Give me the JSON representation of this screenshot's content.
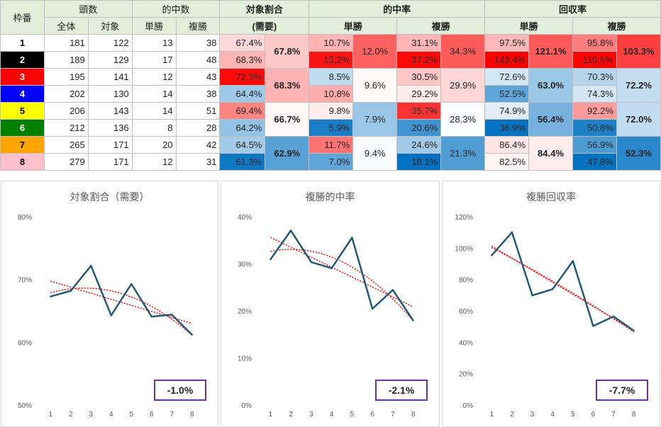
{
  "table": {
    "header": {
      "waku": "枠番",
      "tosu": "頭数",
      "zentai": "全体",
      "taisho": "対象",
      "tekichu_su": "的中数",
      "tansho": "単勝",
      "fukusho": "複勝",
      "taisho_wariai": "対象割合",
      "juyo": "(需要)",
      "tekichuritsu": "的中率",
      "kaishuritsu": "回収率"
    },
    "rows": [
      {
        "waku": "1",
        "zentai": "181",
        "taisho": "122",
        "tan_hit": "13",
        "fuku_hit": "38",
        "ratio": "67.4%",
        "tan_rate": "10.7%",
        "fuku_rate": "31.1%",
        "tan_ret": "97.5%",
        "fuku_ret": "95.8%"
      },
      {
        "waku": "2",
        "zentai": "189",
        "taisho": "129",
        "tan_hit": "17",
        "fuku_hit": "48",
        "ratio": "68.3%",
        "tan_rate": "13.2%",
        "fuku_rate": "37.2%",
        "tan_ret": "143.4%",
        "fuku_ret": "110.5%"
      },
      {
        "waku": "3",
        "zentai": "195",
        "taisho": "141",
        "tan_hit": "12",
        "fuku_hit": "43",
        "ratio": "72.3%",
        "tan_rate": "8.5%",
        "fuku_rate": "30.5%",
        "tan_ret": "72.6%",
        "fuku_ret": "70.3%"
      },
      {
        "waku": "4",
        "zentai": "202",
        "taisho": "130",
        "tan_hit": "14",
        "fuku_hit": "38",
        "ratio": "64.4%",
        "tan_rate": "10.8%",
        "fuku_rate": "29.2%",
        "tan_ret": "52.5%",
        "fuku_ret": "74.3%"
      },
      {
        "waku": "5",
        "zentai": "206",
        "taisho": "143",
        "tan_hit": "14",
        "fuku_hit": "51",
        "ratio": "69.4%",
        "tan_rate": "9.8%",
        "fuku_rate": "35.7%",
        "tan_ret": "74.9%",
        "fuku_ret": "92.2%"
      },
      {
        "waku": "6",
        "zentai": "212",
        "taisho": "136",
        "tan_hit": "8",
        "fuku_hit": "28",
        "ratio": "64.2%",
        "tan_rate": "5.9%",
        "fuku_rate": "20.6%",
        "tan_ret": "36.9%",
        "fuku_ret": "50.8%"
      },
      {
        "waku": "7",
        "zentai": "265",
        "taisho": "171",
        "tan_hit": "20",
        "fuku_hit": "42",
        "ratio": "64.5%",
        "tan_rate": "11.7%",
        "fuku_rate": "24.6%",
        "tan_ret": "86.4%",
        "fuku_ret": "56.9%"
      },
      {
        "waku": "8",
        "zentai": "279",
        "taisho": "171",
        "tan_hit": "12",
        "fuku_hit": "31",
        "ratio": "61.3%",
        "tan_rate": "7.0%",
        "fuku_rate": "18.1%",
        "tan_ret": "82.5%",
        "fuku_ret": "47.8%"
      }
    ],
    "pairs": [
      {
        "ratio": "67.8%",
        "tan_rate": "12.0%",
        "fuku_rate": "34.3%",
        "tan_ret": "121.1%",
        "fuku_ret": "103.3%"
      },
      {
        "ratio": "68.3%",
        "tan_rate": "9.6%",
        "fuku_rate": "29.9%",
        "tan_ret": "63.0%",
        "fuku_ret": "72.2%"
      },
      {
        "ratio": "66.7%",
        "tan_rate": "7.9%",
        "fuku_rate": "28.3%",
        "tan_ret": "56.4%",
        "fuku_ret": "72.0%"
      },
      {
        "ratio": "62.9%",
        "tan_rate": "9.4%",
        "fuku_rate": "21.3%",
        "tan_ret": "84.4%",
        "fuku_ret": "52.3%"
      }
    ],
    "waku_colors": [
      "#ffffff",
      "#000000",
      "#ff0000",
      "#0000ff",
      "#ffff00",
      "#008000",
      "#ffa500",
      "#ffc0cb"
    ],
    "waku_text_colors": [
      "#000000",
      "#ffffff",
      "#ffffff",
      "#ffffff",
      "#000000",
      "#ffffff",
      "#000000",
      "#000000"
    ]
  },
  "chart_data": [
    {
      "type": "line",
      "title": "対象割合（需要）",
      "x": [
        1,
        2,
        3,
        4,
        5,
        6,
        7,
        8
      ],
      "values": [
        67.4,
        68.3,
        72.3,
        64.4,
        69.4,
        64.2,
        64.5,
        61.3
      ],
      "ylim": [
        50,
        80
      ],
      "yticks": [
        50,
        60,
        70,
        80
      ],
      "yticklabels": [
        "50%",
        "60%",
        "70%",
        "80%"
      ],
      "xticklabels": [
        "1",
        "2",
        "3",
        "4",
        "5",
        "6",
        "7",
        "8"
      ],
      "trendlines": [
        "linear",
        "polynomial"
      ],
      "slope_label": "-1.0%"
    },
    {
      "type": "line",
      "title": "複勝的中率",
      "x": [
        1,
        2,
        3,
        4,
        5,
        6,
        7,
        8
      ],
      "values": [
        31.1,
        37.2,
        30.5,
        29.2,
        35.7,
        20.6,
        24.6,
        18.1
      ],
      "ylim": [
        0,
        40
      ],
      "yticks": [
        0,
        10,
        20,
        30,
        40
      ],
      "yticklabels": [
        "0%",
        "10%",
        "20%",
        "30%",
        "40%"
      ],
      "xticklabels": [
        "1",
        "2",
        "3",
        "4",
        "5",
        "6",
        "7",
        "8"
      ],
      "trendlines": [
        "linear",
        "polynomial"
      ],
      "slope_label": "-2.1%"
    },
    {
      "type": "line",
      "title": "複勝回収率",
      "x": [
        1,
        2,
        3,
        4,
        5,
        6,
        7,
        8
      ],
      "values": [
        95.8,
        110.5,
        70.3,
        74.3,
        92.2,
        50.8,
        56.9,
        47.8
      ],
      "ylim": [
        0,
        120
      ],
      "yticks": [
        0,
        20,
        40,
        60,
        80,
        100,
        120
      ],
      "yticklabels": [
        "0%",
        "20%",
        "40%",
        "60%",
        "80%",
        "100%",
        "120%"
      ],
      "xticklabels": [
        "1",
        "2",
        "3",
        "4",
        "5",
        "6",
        "7",
        "8"
      ],
      "trendlines": [
        "linear",
        "polynomial"
      ],
      "slope_label": "-7.7%"
    }
  ],
  "colors": {
    "line": "#215a78",
    "trend": "#ff0000",
    "slope_border": "#7030a0",
    "header_bg": "#e2efda"
  }
}
